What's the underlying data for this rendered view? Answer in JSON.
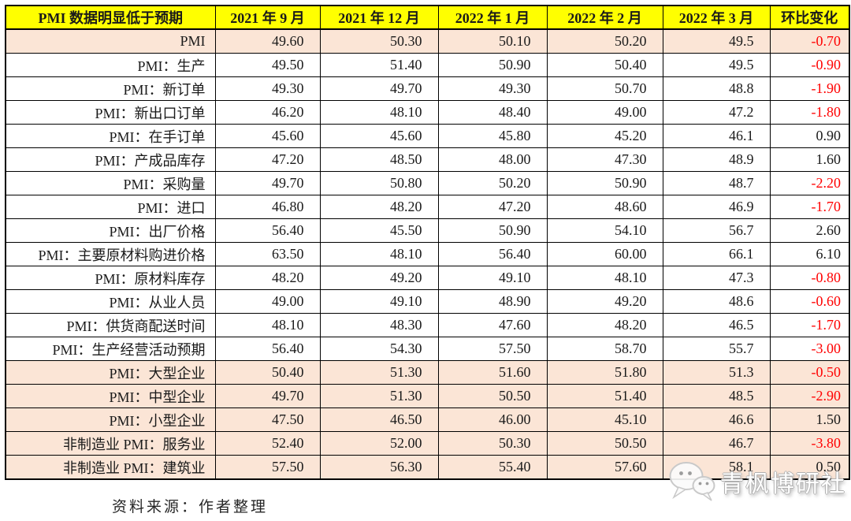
{
  "chart_data": {
    "type": "table",
    "title": "PMI 数据明显低于预期",
    "columns": [
      "PMI 数据明显低于预期",
      "2021 年 9 月",
      "2021 年 12 月",
      "2022 年 1 月",
      "2022 年 2 月",
      "2022 年 3 月",
      "环比变化"
    ],
    "rows": [
      {
        "label": "PMI",
        "values": [
          "49.60",
          "50.30",
          "50.10",
          "50.20",
          "49.5"
        ],
        "change": "-0.70",
        "highlighted": true
      },
      {
        "label": "PMI：生产",
        "values": [
          "49.50",
          "51.40",
          "50.90",
          "50.40",
          "49.5"
        ],
        "change": "-0.90",
        "highlighted": false
      },
      {
        "label": "PMI：新订单",
        "values": [
          "49.30",
          "49.70",
          "49.30",
          "50.70",
          "48.8"
        ],
        "change": "-1.90",
        "highlighted": false
      },
      {
        "label": "PMI：新出口订单",
        "values": [
          "46.20",
          "48.10",
          "48.40",
          "49.00",
          "47.2"
        ],
        "change": "-1.80",
        "highlighted": false
      },
      {
        "label": "PMI：在手订单",
        "values": [
          "45.60",
          "45.60",
          "45.80",
          "45.20",
          "46.1"
        ],
        "change": "0.90",
        "highlighted": false
      },
      {
        "label": "PMI：产成品库存",
        "values": [
          "47.20",
          "48.50",
          "48.00",
          "47.30",
          "48.9"
        ],
        "change": "1.60",
        "highlighted": false
      },
      {
        "label": "PMI：采购量",
        "values": [
          "49.70",
          "50.80",
          "50.20",
          "50.90",
          "48.7"
        ],
        "change": "-2.20",
        "highlighted": false
      },
      {
        "label": "PMI：进口",
        "values": [
          "46.80",
          "48.20",
          "47.20",
          "48.60",
          "46.9"
        ],
        "change": "-1.70",
        "highlighted": false
      },
      {
        "label": "PMI：出厂价格",
        "values": [
          "56.40",
          "45.50",
          "50.90",
          "54.10",
          "56.7"
        ],
        "change": "2.60",
        "highlighted": false
      },
      {
        "label": "PMI：主要原材料购进价格",
        "values": [
          "63.50",
          "48.10",
          "56.40",
          "60.00",
          "66.1"
        ],
        "change": "6.10",
        "highlighted": false
      },
      {
        "label": "PMI：原材料库存",
        "values": [
          "48.20",
          "49.20",
          "49.10",
          "48.10",
          "47.3"
        ],
        "change": "-0.80",
        "highlighted": false
      },
      {
        "label": "PMI：从业人员",
        "values": [
          "49.00",
          "49.10",
          "48.90",
          "49.20",
          "48.6"
        ],
        "change": "-0.60",
        "highlighted": false
      },
      {
        "label": "PMI：供货商配送时间",
        "values": [
          "48.10",
          "48.30",
          "47.60",
          "48.20",
          "46.5"
        ],
        "change": "-1.70",
        "highlighted": false
      },
      {
        "label": "PMI：生产经营活动预期",
        "values": [
          "56.40",
          "54.30",
          "57.50",
          "58.70",
          "55.7"
        ],
        "change": "-3.00",
        "highlighted": false
      },
      {
        "label": "PMI：大型企业",
        "values": [
          "50.40",
          "51.30",
          "51.60",
          "51.80",
          "51.3"
        ],
        "change": "-0.50",
        "highlighted": true
      },
      {
        "label": "PMI：中型企业",
        "values": [
          "49.70",
          "51.30",
          "50.50",
          "51.40",
          "48.5"
        ],
        "change": "-2.90",
        "highlighted": true
      },
      {
        "label": "PMI：小型企业",
        "values": [
          "47.50",
          "46.50",
          "46.00",
          "45.10",
          "46.6"
        ],
        "change": "1.50",
        "highlighted": true
      },
      {
        "label": "非制造业 PMI：服务业",
        "values": [
          "52.40",
          "52.00",
          "50.30",
          "50.50",
          "46.7"
        ],
        "change": "-3.80",
        "highlighted": true
      },
      {
        "label": "非制造业 PMI：建筑业",
        "values": [
          "57.50",
          "56.30",
          "55.40",
          "57.60",
          "58.1"
        ],
        "change": "0.50",
        "highlighted": true
      }
    ],
    "layout_hints": {
      "grid": "on",
      "header_style": "yellow-bold",
      "negative_in_red": true
    }
  },
  "footer": {
    "source": "资料来源：作者整理"
  },
  "watermark": {
    "text": "青枫博研社",
    "icon": "wechat-icon",
    "text_color": "#FFFFFF",
    "outline_color": "#B0B0B0"
  },
  "colors": {
    "header_bg": "#FFFF00",
    "highlight_bg": "#FBE5D6",
    "row_bg": "#FFFFFF",
    "negative_text": "#FF0000",
    "text": "#1A1A1A",
    "border": "#000000"
  }
}
